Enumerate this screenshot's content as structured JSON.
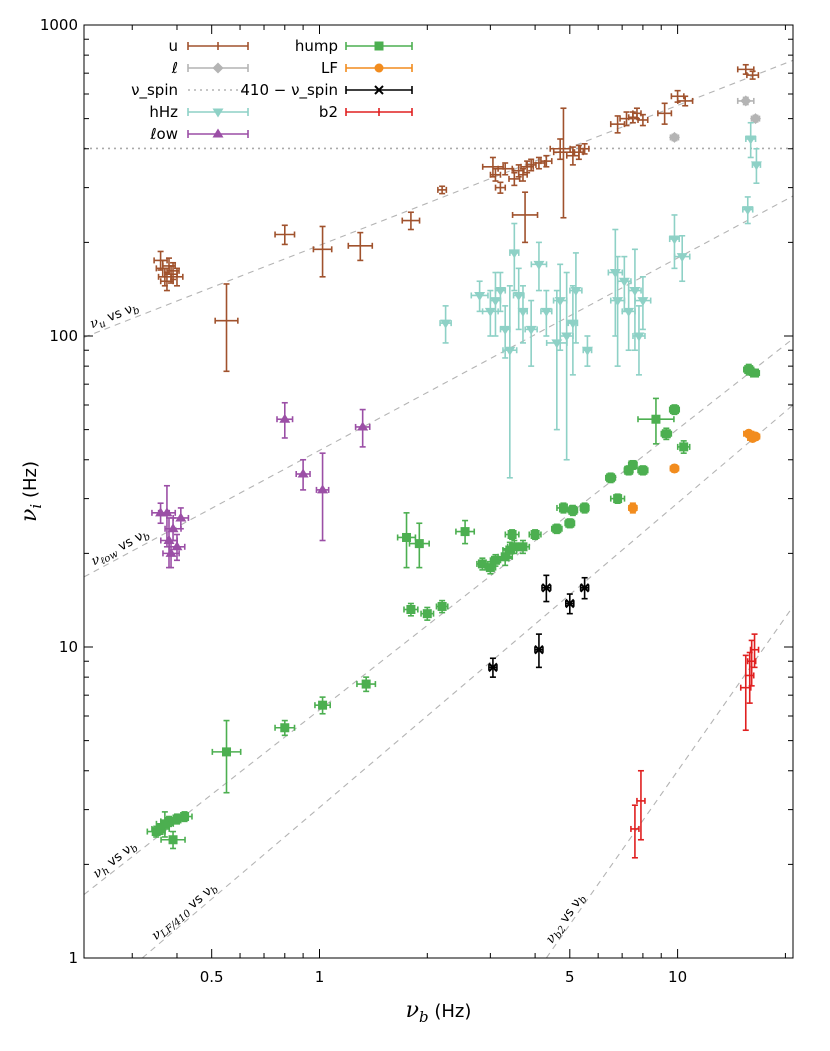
{
  "chart_data": {
    "type": "scatter",
    "xlabel": "ν_b (Hz)",
    "ylabel": "ν_i (Hz)",
    "xscale": "log",
    "yscale": "log",
    "xlim": [
      0.22,
      21
    ],
    "ylim": [
      1,
      1000
    ],
    "xticks": [
      {
        "value": 0.5,
        "label": "0.5"
      },
      {
        "value": 1,
        "label": "1"
      },
      {
        "value": 5,
        "label": "5"
      },
      {
        "value": 10,
        "label": "10"
      }
    ],
    "yticks": [
      {
        "value": 1,
        "label": "1"
      },
      {
        "value": 10,
        "label": "10"
      },
      {
        "value": 100,
        "label": "100"
      },
      {
        "value": 1000,
        "label": "1000"
      }
    ],
    "legend": {
      "placement": "top-left",
      "entries": [
        {
          "label": "u",
          "series": "u"
        },
        {
          "label": "ℓ",
          "series": "l"
        },
        {
          "label": "ν_spin",
          "series": "spin"
        },
        {
          "label": "hHz",
          "series": "hHz"
        },
        {
          "label": "ℓow",
          "series": "low"
        },
        {
          "label": "hump",
          "series": "hump"
        },
        {
          "label": "LF",
          "series": "LF"
        },
        {
          "label": "410 − ν_spin",
          "series": "sub"
        },
        {
          "label": "b2",
          "series": "b2"
        }
      ]
    },
    "reference_lines": [
      {
        "label": "ν_u vs ν_b",
        "x": [
          0.22,
          21
        ],
        "y": [
          99,
          770
        ]
      },
      {
        "label": "ν_ℓow vs ν_b",
        "x": [
          0.22,
          21
        ],
        "y": [
          16.8,
          282
        ]
      },
      {
        "label": "ν_h vs ν_b",
        "x": [
          0.22,
          21
        ],
        "y": [
          1.6,
          98
        ]
      },
      {
        "label": "ν_LF/410 vs ν_b",
        "x": [
          0.32,
          21
        ],
        "y": [
          1.0,
          60
        ]
      },
      {
        "label": "ν_b2 vs ν_b",
        "x": [
          4.3,
          21
        ],
        "y": [
          1.0,
          13.5
        ]
      },
      {
        "label": "ν_spin",
        "x": [
          0.22,
          21
        ],
        "y": [
          401,
          401
        ]
      }
    ],
    "series": [
      {
        "key": "u",
        "color": "#a0522d",
        "marker": "plus",
        "points": [
          [
            0.36,
            175,
            0.015,
            12
          ],
          [
            0.365,
            165,
            0.015,
            10
          ],
          [
            0.37,
            155,
            0.015,
            10
          ],
          [
            0.375,
            150,
            0.015,
            10
          ],
          [
            0.38,
            168,
            0.015,
            10
          ],
          [
            0.385,
            158,
            0.015,
            10
          ],
          [
            0.39,
            162,
            0.015,
            10
          ],
          [
            0.4,
            155,
            0.015,
            10
          ],
          [
            0.55,
            112,
            0.04,
            35
          ],
          [
            0.8,
            212,
            0.05,
            15
          ],
          [
            1.02,
            190,
            0.06,
            35
          ],
          [
            1.3,
            195,
            0.1,
            20
          ],
          [
            1.8,
            235,
            0.1,
            15
          ],
          [
            2.2,
            295,
            0.06,
            8
          ],
          [
            3.05,
            350,
            0.2,
            25
          ],
          [
            3.1,
            330,
            0.1,
            15
          ],
          [
            3.3,
            345,
            0.15,
            15
          ],
          [
            3.2,
            300,
            0.1,
            12
          ],
          [
            3.5,
            320,
            0.12,
            15
          ],
          [
            3.6,
            340,
            0.12,
            15
          ],
          [
            3.7,
            330,
            0.1,
            15
          ],
          [
            3.8,
            350,
            0.15,
            15
          ],
          [
            3.75,
            245,
            0.3,
            45
          ],
          [
            3.9,
            355,
            0.12,
            15
          ],
          [
            4.1,
            360,
            0.15,
            15
          ],
          [
            4.3,
            365,
            0.15,
            15
          ],
          [
            4.7,
            400,
            0.3,
            30
          ],
          [
            4.8,
            390,
            0.3,
            150
          ],
          [
            5.1,
            380,
            0.2,
            25
          ],
          [
            5.3,
            390,
            0.15,
            20
          ],
          [
            5.5,
            400,
            0.15,
            15
          ],
          [
            6.8,
            480,
            0.3,
            30
          ],
          [
            7.2,
            500,
            0.3,
            25
          ],
          [
            7.5,
            505,
            0.2,
            20
          ],
          [
            7.7,
            520,
            0.2,
            20
          ],
          [
            8.0,
            495,
            0.25,
            20
          ],
          [
            9.2,
            520,
            0.4,
            40
          ],
          [
            10.0,
            590,
            0.4,
            25
          ],
          [
            10.5,
            570,
            0.5,
            20
          ],
          [
            15.5,
            720,
            0.8,
            25
          ],
          [
            16.2,
            690,
            0.6,
            20
          ]
        ]
      },
      {
        "key": "l",
        "color": "#b4b4b4",
        "marker": "diamond",
        "points": [
          [
            9.8,
            435,
            0.25,
            10
          ],
          [
            15.5,
            570,
            0.8,
            15
          ],
          [
            16.5,
            500,
            0.3,
            12
          ]
        ]
      },
      {
        "key": "hHz",
        "color": "#8ed1c6",
        "marker": "triangle-down",
        "points": [
          [
            2.25,
            110,
            0.08,
            15
          ],
          [
            2.8,
            135,
            0.15,
            15
          ],
          [
            3.0,
            120,
            0.15,
            20
          ],
          [
            3.1,
            130,
            0.1,
            30
          ],
          [
            3.2,
            140,
            0.1,
            20
          ],
          [
            3.3,
            105,
            0.1,
            20
          ],
          [
            3.4,
            90,
            0.15,
            55
          ],
          [
            3.5,
            185,
            0.1,
            45
          ],
          [
            3.6,
            135,
            0.12,
            30
          ],
          [
            3.7,
            120,
            0.1,
            25
          ],
          [
            3.9,
            105,
            0.15,
            25
          ],
          [
            4.1,
            170,
            0.2,
            30
          ],
          [
            4.3,
            120,
            0.15,
            20
          ],
          [
            4.6,
            95,
            0.3,
            45
          ],
          [
            4.7,
            130,
            0.2,
            40
          ],
          [
            4.9,
            100,
            0.2,
            60
          ],
          [
            5.1,
            110,
            0.15,
            35
          ],
          [
            5.2,
            140,
            0.2,
            45
          ],
          [
            5.6,
            90,
            0.15,
            10
          ],
          [
            6.7,
            160,
            0.3,
            60
          ],
          [
            6.8,
            130,
            0.3,
            50
          ],
          [
            7.1,
            150,
            0.3,
            30
          ],
          [
            7.3,
            120,
            0.3,
            30
          ],
          [
            7.6,
            140,
            0.3,
            50
          ],
          [
            7.8,
            100,
            0.3,
            25
          ],
          [
            8.0,
            130,
            0.4,
            25
          ],
          [
            9.8,
            205,
            0.3,
            40
          ],
          [
            10.3,
            180,
            0.5,
            30
          ],
          [
            15.7,
            255,
            0.5,
            25
          ],
          [
            16.0,
            430,
            0.5,
            55
          ],
          [
            16.6,
            355,
            0.4,
            45
          ]
        ]
      },
      {
        "key": "low",
        "color": "#9b4fa6",
        "marker": "triangle-up",
        "points": [
          [
            0.36,
            27,
            0.02,
            2
          ],
          [
            0.375,
            27,
            0.02,
            6
          ],
          [
            0.38,
            22,
            0.02,
            4
          ],
          [
            0.385,
            20,
            0.02,
            2
          ],
          [
            0.39,
            24,
            0.02,
            2
          ],
          [
            0.4,
            21,
            0.02,
            2
          ],
          [
            0.41,
            26,
            0.02,
            2
          ],
          [
            0.8,
            54,
            0.04,
            7
          ],
          [
            0.9,
            36,
            0.04,
            4
          ],
          [
            1.02,
            32,
            0.04,
            10
          ],
          [
            1.32,
            51,
            0.06,
            7
          ]
        ]
      },
      {
        "key": "hump",
        "color": "#4caf50",
        "marker": "square",
        "points": [
          [
            0.35,
            2.55,
            0.02,
            0.1
          ],
          [
            0.36,
            2.6,
            0.02,
            0.1
          ],
          [
            0.37,
            2.7,
            0.02,
            0.25
          ],
          [
            0.38,
            2.75,
            0.02,
            0.1
          ],
          [
            0.39,
            2.4,
            0.03,
            0.15
          ],
          [
            0.4,
            2.8,
            0.02,
            0.1
          ],
          [
            0.42,
            2.85,
            0.02,
            0.1
          ],
          [
            0.55,
            4.6,
            0.05,
            1.2
          ],
          [
            0.8,
            5.5,
            0.05,
            0.3
          ],
          [
            1.02,
            6.5,
            0.05,
            0.4
          ],
          [
            1.35,
            7.6,
            0.08,
            0.4
          ],
          [
            1.75,
            22.5,
            0.1,
            4.5
          ],
          [
            1.9,
            21.5,
            0.12,
            3.5
          ],
          [
            1.8,
            13.2,
            0.08,
            0.6
          ],
          [
            2.0,
            12.8,
            0.08,
            0.6
          ],
          [
            2.2,
            13.5,
            0.08,
            0.6
          ],
          [
            2.55,
            23.5,
            0.15,
            2
          ],
          [
            2.85,
            18.5,
            0.1,
            0.8
          ],
          [
            3.0,
            18.0,
            0.1,
            0.8
          ],
          [
            3.1,
            19.0,
            0.1,
            0.8
          ],
          [
            3.3,
            19.5,
            0.15,
            1.2
          ],
          [
            3.4,
            20.5,
            0.15,
            1.2
          ],
          [
            3.5,
            21.0,
            0.15,
            1.0
          ],
          [
            3.45,
            23.0,
            0.15,
            0.8
          ],
          [
            3.7,
            21.0,
            0.15,
            1.0
          ],
          [
            4.0,
            23.0,
            0.15,
            0.8
          ],
          [
            4.6,
            24.0,
            0.15,
            0.8
          ],
          [
            4.8,
            28.0,
            0.2,
            1.0
          ],
          [
            5.0,
            25.0,
            0.15,
            0.8
          ],
          [
            5.1,
            27.5,
            0.15,
            1.0
          ],
          [
            5.5,
            28.0,
            0.15,
            1.0
          ],
          [
            6.5,
            35.0,
            0.2,
            1.2
          ],
          [
            6.8,
            30.0,
            0.3,
            1.0
          ],
          [
            7.3,
            37.0,
            0.2,
            1.2
          ],
          [
            7.5,
            38.5,
            0.2,
            1.2
          ],
          [
            8.0,
            37.0,
            0.25,
            1.2
          ],
          [
            8.7,
            54.0,
            1.0,
            9
          ],
          [
            9.3,
            48.5,
            0.3,
            2
          ],
          [
            9.8,
            58.0,
            0.3,
            2
          ],
          [
            10.4,
            44.0,
            0.4,
            2
          ],
          [
            15.8,
            78.0,
            0.5,
            3
          ],
          [
            16.4,
            76.0,
            0.5,
            2
          ]
        ]
      },
      {
        "key": "LF",
        "color": "#f28c1e",
        "marker": "circle",
        "points": [
          [
            7.5,
            28.0,
            0.1,
            1.0
          ],
          [
            9.8,
            37.5,
            0.1,
            1.0
          ],
          [
            15.8,
            48.5,
            0.5,
            1.0
          ],
          [
            16.2,
            47.0,
            0.5,
            1.0
          ],
          [
            16.5,
            47.5,
            0.3,
            1.0
          ]
        ]
      },
      {
        "key": "sub",
        "color": "#000000",
        "marker": "cross",
        "points": [
          [
            3.05,
            8.6,
            0.05,
            0.6
          ],
          [
            4.1,
            9.8,
            0.08,
            1.2
          ],
          [
            4.3,
            15.5,
            0.12,
            1.5
          ],
          [
            5.0,
            13.8,
            0.1,
            1.0
          ],
          [
            5.5,
            15.5,
            0.12,
            1.2
          ]
        ]
      },
      {
        "key": "b2",
        "color": "#e02020",
        "marker": "plus",
        "points": [
          [
            7.6,
            2.6,
            0.15,
            0.5
          ],
          [
            7.9,
            3.2,
            0.2,
            0.8
          ],
          [
            15.5,
            7.4,
            0.5,
            2.0
          ],
          [
            15.9,
            8.1,
            0.4,
            1.5
          ],
          [
            16.1,
            9.0,
            0.4,
            1.5
          ],
          [
            16.4,
            9.8,
            0.3,
            1.2
          ]
        ]
      }
    ]
  }
}
